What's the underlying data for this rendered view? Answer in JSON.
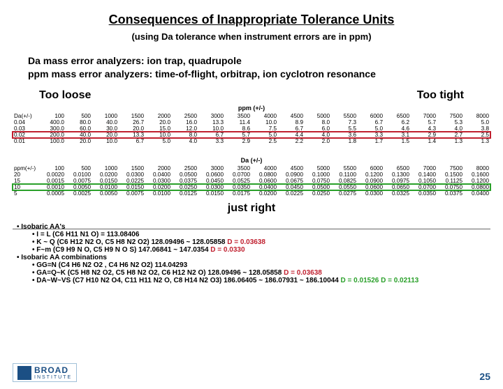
{
  "title": {
    "text": "Consequences of Inappropriate Tolerance Units",
    "fontsize": 18
  },
  "subtitle": {
    "text": "(using Da tolerance when instrument errors are in ppm)",
    "fontsize": 13
  },
  "body": {
    "line1": "Da mass error analyzers: ion trap, quadrupole",
    "line2": "ppm mass error analyzers: time-of-flight, orbitrap, ion cyclotron resonance",
    "fontsize": 14
  },
  "labels": {
    "left": "Too loose",
    "right": "Too tight",
    "fontsize": 16
  },
  "table1": {
    "caption": "ppm (+/-)",
    "header_label": "Da(+/-)",
    "cols": [
      "100",
      "500",
      "1000",
      "1500",
      "2000",
      "2500",
      "3000",
      "3500",
      "4000",
      "4500",
      "5000",
      "5500",
      "6000",
      "6500",
      "7000",
      "7500",
      "8000"
    ],
    "rows": [
      {
        "label": "0.04",
        "cells": [
          "400.0",
          "80.0",
          "40.0",
          "26.7",
          "20.0",
          "16.0",
          "13.3",
          "11.4",
          "10.0",
          "8.9",
          "8.0",
          "7.3",
          "6.7",
          "6.2",
          "5.7",
          "5.3",
          "5.0"
        ]
      },
      {
        "label": "0.03",
        "cells": [
          "300.0",
          "60.0",
          "30.0",
          "20.0",
          "15.0",
          "12.0",
          "10.0",
          "8.6",
          "7.5",
          "6.7",
          "6.0",
          "5.5",
          "5.0",
          "4.6",
          "4.3",
          "4.0",
          "3.8"
        ]
      },
      {
        "label": "0.02",
        "cells": [
          "200.0",
          "40.0",
          "20.0",
          "13.3",
          "10.0",
          "8.0",
          "6.7",
          "5.7",
          "5.0",
          "4.4",
          "4.0",
          "3.6",
          "3.3",
          "3.1",
          "2.9",
          "2.7",
          "2.5"
        ],
        "highlight": "red"
      },
      {
        "label": "0.01",
        "cells": [
          "100.0",
          "20.0",
          "10.0",
          "6.7",
          "5.0",
          "4.0",
          "3.3",
          "2.9",
          "2.5",
          "2.2",
          "2.0",
          "1.8",
          "1.7",
          "1.5",
          "1.4",
          "1.3",
          "1.3"
        ]
      }
    ],
    "fontsize": 8.2,
    "highlight_color": "#c0202f"
  },
  "table2": {
    "caption": "Da (+/-)",
    "header_label": "ppm(+/-)",
    "cols": [
      "100",
      "500",
      "1000",
      "1500",
      "2000",
      "2500",
      "3000",
      "3500",
      "4000",
      "4500",
      "5000",
      "5500",
      "6000",
      "6500",
      "7000",
      "7500",
      "8000"
    ],
    "rows": [
      {
        "label": "20",
        "cells": [
          "0.0020",
          "0.0100",
          "0.0200",
          "0.0300",
          "0.0400",
          "0.0500",
          "0.0600",
          "0.0700",
          "0.0800",
          "0.0900",
          "0.1000",
          "0.1100",
          "0.1200",
          "0.1300",
          "0.1400",
          "0.1500",
          "0.1600"
        ]
      },
      {
        "label": "15",
        "cells": [
          "0.0015",
          "0.0075",
          "0.0150",
          "0.0225",
          "0.0300",
          "0.0375",
          "0.0450",
          "0.0525",
          "0.0600",
          "0.0675",
          "0.0750",
          "0.0825",
          "0.0900",
          "0.0975",
          "0.1050",
          "0.1125",
          "0.1200"
        ]
      },
      {
        "label": "10",
        "cells": [
          "0.0010",
          "0.0050",
          "0.0100",
          "0.0150",
          "0.0200",
          "0.0250",
          "0.0300",
          "0.0350",
          "0.0400",
          "0.0450",
          "0.0500",
          "0.0550",
          "0.0600",
          "0.0650",
          "0.0700",
          "0.0750",
          "0.0800"
        ],
        "highlight": "green"
      },
      {
        "label": "5",
        "cells": [
          "0.0005",
          "0.0025",
          "0.0050",
          "0.0075",
          "0.0100",
          "0.0125",
          "0.0150",
          "0.0175",
          "0.0200",
          "0.0225",
          "0.0250",
          "0.0275",
          "0.0300",
          "0.0325",
          "0.0350",
          "0.0375",
          "0.0400"
        ]
      }
    ],
    "fontsize": 8.2,
    "highlight_color": "#2aa02a"
  },
  "just_right": {
    "text": "just right",
    "fontsize": 16
  },
  "bullets": {
    "fontsize": 10,
    "items": [
      {
        "lvl": 1,
        "text": "• Isobaric AA's"
      },
      {
        "lvl": 2,
        "text": "• I = L (C6 H11 N1 O) = 113.08406"
      },
      {
        "lvl": 2,
        "text": "• K ~ Q (C6 H12 N2 O, C5 H8 N2 O2) 128.09496 ~ 128.05858",
        "suffix_red": " D = 0.03638"
      },
      {
        "lvl": 2,
        "text": "• F~m (C9 H9 N O, C5 H9 N O S) 147.06841 ~ 147.0354",
        "suffix_red": " D = 0.0330"
      },
      {
        "lvl": 1,
        "text": "• Isobaric AA combinations"
      },
      {
        "lvl": 2,
        "text": "• GG=N (C4 H6 N2 O2 , C4 H6 N2 O2) 114.04293"
      },
      {
        "lvl": 2,
        "text": "• GA=Q~K (C5 H8 N2 O2, C5 H8 N2 O2, C6 H12 N2 O) 128.09496 ~ 128.05858",
        "suffix_red": " D = 0.03638"
      },
      {
        "lvl": 2,
        "text": "• DA~W~VS (C7 H10 N2 O4, C11 H11 N2 O, C8 H14 N2 O3) 186.06405 ~ 186.07931 ~ 186.10044",
        "suffix_green": "  D = 0.01526 D = 0.02113"
      }
    ]
  },
  "footer": {
    "logo_name": "BROAD",
    "logo_sub": "INSTITUTE",
    "page": "25"
  },
  "colors": {
    "red": "#c0202f",
    "green": "#2aa02a",
    "blue": "#1b4f84"
  }
}
